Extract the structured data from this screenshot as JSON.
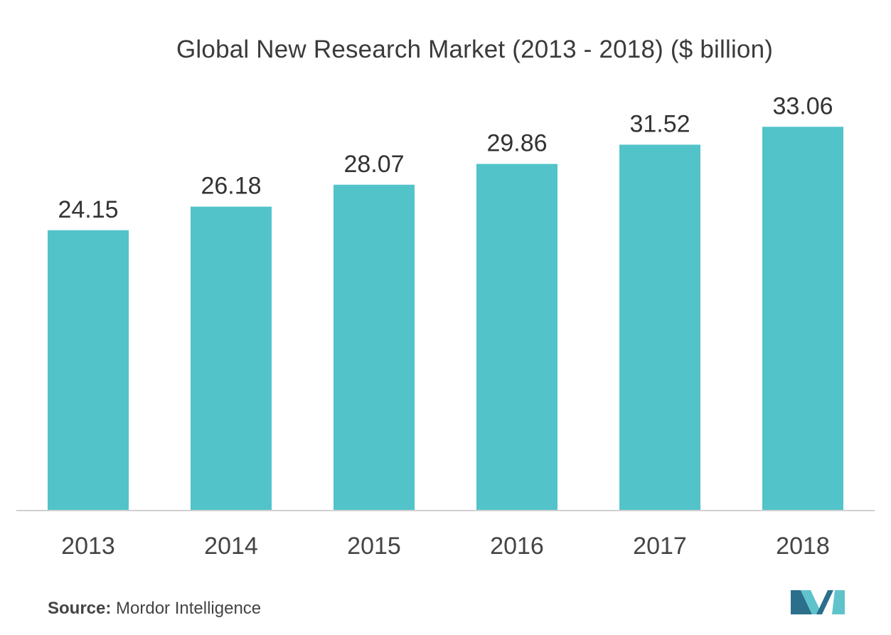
{
  "chart_data": {
    "type": "bar",
    "title": "Global New Research Market (2013 - 2018) ($ billion)",
    "categories": [
      "2013",
      "2014",
      "2015",
      "2016",
      "2017",
      "2018"
    ],
    "values": [
      24.15,
      26.18,
      28.07,
      29.86,
      31.52,
      33.06
    ],
    "value_labels": [
      "24.15",
      "26.18",
      "28.07",
      "29.86",
      "31.52",
      "33.06"
    ],
    "xlabel": "",
    "ylabel": "",
    "ylim": [
      0,
      40
    ],
    "grid": false,
    "legend": "none"
  },
  "colors": {
    "bar": "#52c3c9",
    "axis": "#d0d0d0",
    "logo_dark": "#2b6f8c",
    "logo_light": "#5fc3cc"
  },
  "source": {
    "label": "Source:",
    "text": "Mordor Intelligence"
  },
  "logo": {
    "icon": "mordor-intelligence-logo-icon"
  }
}
